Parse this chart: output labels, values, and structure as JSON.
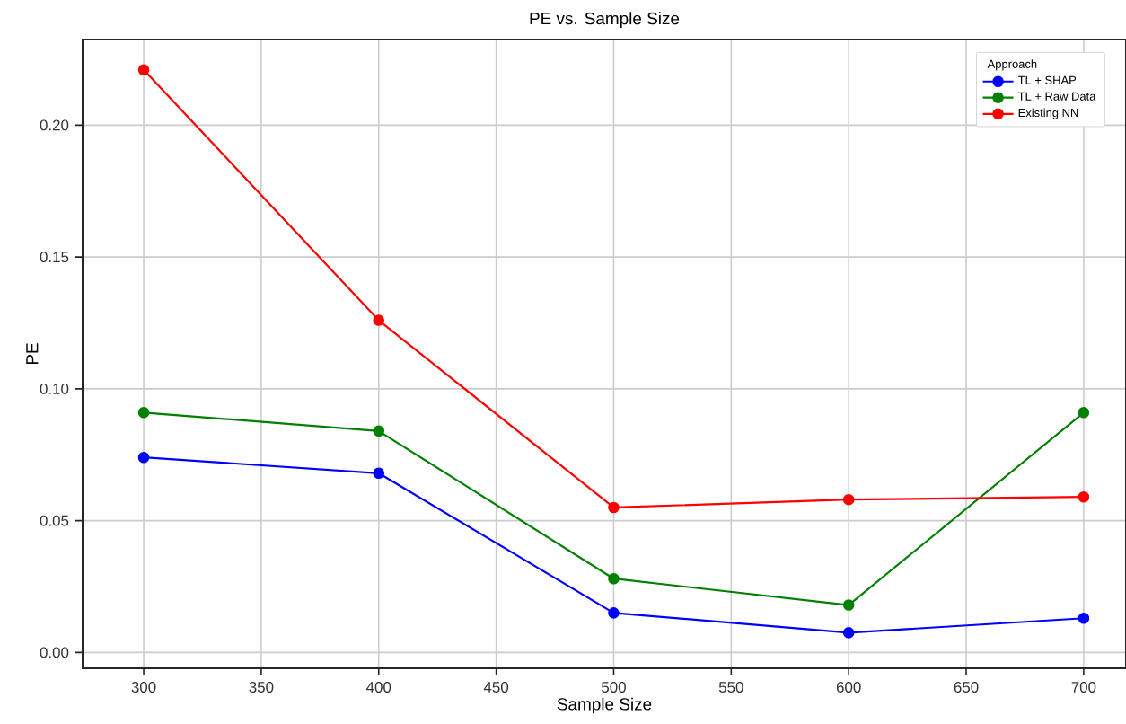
{
  "chart_data": {
    "type": "line",
    "title": "PE vs. Sample Size",
    "xlabel": "Sample Size",
    "ylabel": "PE",
    "legend_title": "Approach",
    "x": [
      300,
      400,
      500,
      600,
      700
    ],
    "series": [
      {
        "name": "TL + SHAP",
        "color": "#0000ff",
        "values": [
          0.074,
          0.068,
          0.015,
          0.0075,
          0.013
        ]
      },
      {
        "name": "TL + Raw Data",
        "color": "#008000",
        "values": [
          0.091,
          0.084,
          0.028,
          0.018,
          0.091
        ]
      },
      {
        "name": "Existing NN",
        "color": "#ff0000",
        "values": [
          0.221,
          0.126,
          0.055,
          0.058,
          0.059
        ]
      }
    ],
    "xlim": [
      274,
      718
    ],
    "ylim": [
      -0.006,
      0.2325
    ],
    "xticks": [
      300,
      350,
      400,
      450,
      500,
      550,
      600,
      650,
      700
    ],
    "yticks": [
      {
        "value": 0,
        "label": "0.00"
      },
      {
        "value": 0.05,
        "label": "0.05"
      },
      {
        "value": 0.1,
        "label": "0.10"
      },
      {
        "value": 0.15,
        "label": "0.15"
      },
      {
        "value": 0.2,
        "label": "0.20"
      }
    ],
    "grid": true,
    "legend": "top right",
    "marker": "circle",
    "line_style": "solid"
  }
}
